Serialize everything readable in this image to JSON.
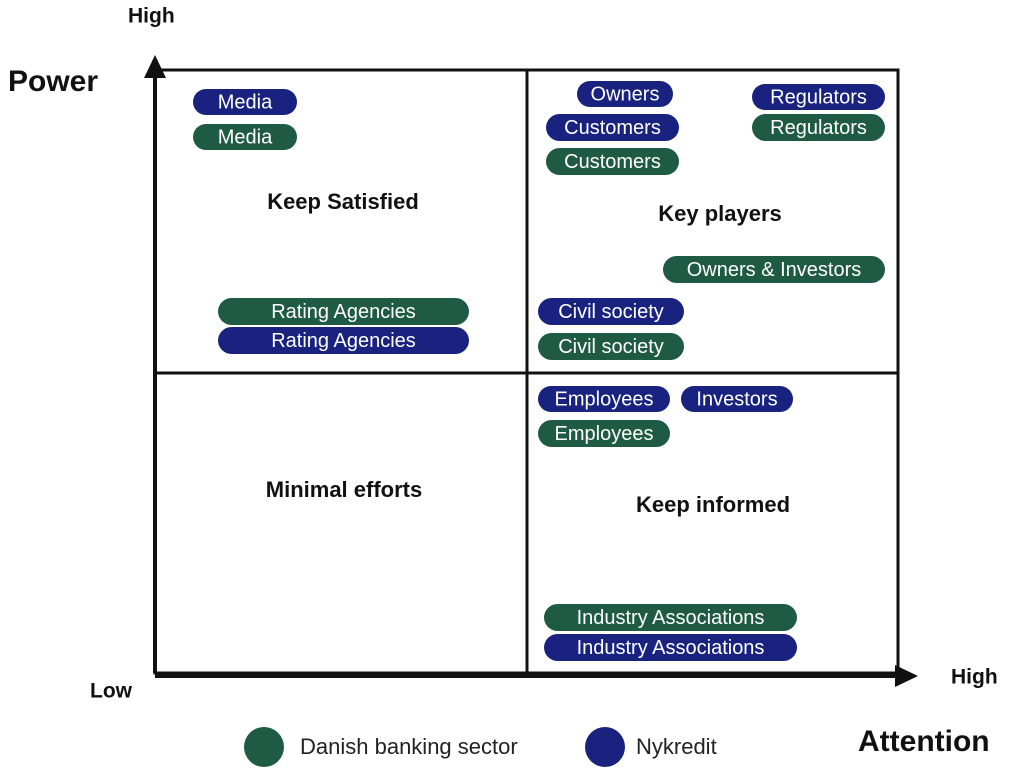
{
  "axes": {
    "y_title": "Power",
    "y_high": "High",
    "low": "Low",
    "x_high": "High",
    "x_title": "Attention"
  },
  "quadrants": [
    "Keep Satisfied",
    "Key players",
    "Minimal efforts",
    "Keep informed"
  ],
  "stakeholders": [
    {
      "label": "Media",
      "color": "#19237f"
    },
    {
      "label": "Media",
      "color": "#1f5a44"
    },
    {
      "label": "Rating Agencies",
      "color": "#1f5a44"
    },
    {
      "label": "Rating Agencies",
      "color": "#19237f"
    },
    {
      "label": "Owners",
      "color": "#19237f"
    },
    {
      "label": "Customers",
      "color": "#19237f"
    },
    {
      "label": "Customers",
      "color": "#1f5a44"
    },
    {
      "label": "Regulators",
      "color": "#19237f"
    },
    {
      "label": "Regulators",
      "color": "#1f5a44"
    },
    {
      "label": "Owners & Investors",
      "color": "#1f5a44"
    },
    {
      "label": "Civil society",
      "color": "#19237f"
    },
    {
      "label": "Civil society",
      "color": "#1f5a44"
    },
    {
      "label": "Employees",
      "color": "#19237f"
    },
    {
      "label": "Investors",
      "color": "#19237f"
    },
    {
      "label": "Employees",
      "color": "#1f5a44"
    },
    {
      "label": "Industry Associations",
      "color": "#1f5a44"
    },
    {
      "label": "Industry Associations",
      "color": "#19237f"
    }
  ],
  "legend": [
    {
      "label": "Danish banking sector",
      "color": "#1f5a44"
    },
    {
      "label": "Nykredit",
      "color": "#19237f"
    }
  ]
}
